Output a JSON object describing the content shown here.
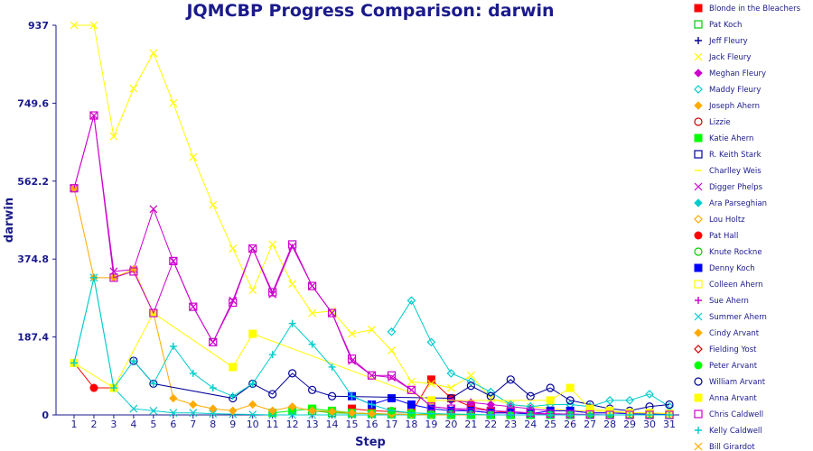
{
  "chart_data": {
    "type": "line",
    "title": "JQMCBP Progress Comparison: darwin",
    "xlabel": "Step",
    "ylabel": "darwin",
    "ylim": [
      0,
      937
    ],
    "yticks": [
      "0",
      "187.4",
      "374.8",
      "562.2",
      "749.6",
      "937"
    ],
    "x": [
      1,
      2,
      3,
      4,
      5,
      6,
      7,
      8,
      9,
      10,
      11,
      12,
      13,
      14,
      15,
      16,
      17,
      18,
      19,
      20,
      21,
      22,
      23,
      24,
      25,
      26,
      27,
      28,
      29,
      30,
      31
    ],
    "grid": false,
    "legend_position": "right",
    "series": [
      {
        "name": "Blonde in the Bleachers",
        "color": "#ff0000",
        "marker": "square",
        "values": [
          null,
          null,
          null,
          null,
          null,
          null,
          null,
          null,
          null,
          null,
          null,
          null,
          null,
          null,
          15,
          10,
          8,
          5,
          85,
          40,
          20,
          10,
          5,
          3,
          2,
          1,
          0,
          0,
          0,
          0,
          0
        ]
      },
      {
        "name": "Pat Koch",
        "color": "#00cc00",
        "marker": "square-open",
        "values": [
          null,
          null,
          null,
          null,
          null,
          null,
          null,
          null,
          null,
          null,
          null,
          null,
          10,
          5,
          4,
          3,
          2,
          1,
          1,
          0,
          0,
          0,
          0,
          0,
          0,
          0,
          0,
          0,
          0,
          0,
          0
        ]
      },
      {
        "name": "Jeff Fleury",
        "color": "#000099",
        "marker": "plus",
        "values": [
          null,
          null,
          null,
          null,
          null,
          null,
          null,
          null,
          null,
          null,
          null,
          null,
          null,
          null,
          null,
          null,
          null,
          null,
          null,
          null,
          null,
          null,
          null,
          null,
          null,
          null,
          null,
          null,
          null,
          null,
          null
        ]
      },
      {
        "name": "Jack Fleury",
        "color": "#ffff00",
        "marker": "x",
        "values": [
          937,
          937,
          670,
          785,
          870,
          750,
          620,
          505,
          400,
          300,
          410,
          315,
          245,
          250,
          195,
          205,
          155,
          80,
          75,
          65,
          95,
          40,
          25,
          20,
          15,
          10,
          10,
          8,
          5,
          5,
          3
        ]
      },
      {
        "name": "Meghan Fleury",
        "color": "#cc00cc",
        "marker": "diamond",
        "values": [
          null,
          null,
          null,
          null,
          null,
          null,
          null,
          null,
          null,
          null,
          null,
          null,
          null,
          null,
          null,
          null,
          null,
          null,
          null,
          35,
          30,
          25,
          20,
          15,
          10,
          10,
          5,
          5,
          3,
          2,
          1
        ]
      },
      {
        "name": "Maddy Fleury",
        "color": "#00cccc",
        "marker": "diamond-open",
        "values": [
          null,
          null,
          null,
          null,
          null,
          null,
          null,
          null,
          null,
          null,
          null,
          null,
          null,
          null,
          null,
          null,
          200,
          275,
          175,
          100,
          80,
          55,
          25,
          20,
          25,
          25,
          20,
          35,
          35,
          50,
          20
        ]
      },
      {
        "name": "Joseph Ahern",
        "color": "#ffaa00",
        "marker": "diamond",
        "values": [
          null,
          null,
          null,
          null,
          null,
          null,
          null,
          null,
          null,
          null,
          null,
          null,
          null,
          null,
          null,
          null,
          null,
          null,
          null,
          null,
          null,
          null,
          null,
          null,
          null,
          null,
          null,
          null,
          null,
          null,
          null
        ]
      },
      {
        "name": "Lizzie",
        "color": "#cc0000",
        "marker": "circle-open",
        "values": [
          null,
          null,
          null,
          null,
          null,
          null,
          null,
          null,
          null,
          null,
          null,
          null,
          null,
          null,
          null,
          null,
          null,
          null,
          null,
          null,
          null,
          null,
          null,
          null,
          null,
          null,
          null,
          null,
          null,
          null,
          null
        ]
      },
      {
        "name": "Katie Ahern",
        "color": "#00ff00",
        "marker": "square",
        "values": [
          null,
          null,
          null,
          null,
          null,
          null,
          null,
          null,
          null,
          null,
          5,
          10,
          15,
          10,
          5,
          3,
          2,
          1,
          0,
          0,
          0,
          0,
          0,
          0,
          0,
          0,
          0,
          0,
          0,
          0,
          0
        ]
      },
      {
        "name": "R. Keith Stark",
        "color": "#000099",
        "marker": "square-open",
        "values": [
          null,
          null,
          null,
          null,
          null,
          null,
          null,
          null,
          null,
          null,
          null,
          null,
          null,
          null,
          null,
          null,
          null,
          null,
          null,
          null,
          null,
          null,
          null,
          null,
          null,
          null,
          null,
          null,
          null,
          null,
          null
        ]
      },
      {
        "name": "Charlley Weis",
        "color": "#ffff00",
        "marker": "line",
        "values": [
          null,
          null,
          null,
          null,
          null,
          null,
          null,
          null,
          null,
          null,
          null,
          null,
          null,
          null,
          null,
          null,
          null,
          null,
          null,
          null,
          null,
          null,
          null,
          null,
          null,
          null,
          null,
          null,
          null,
          null,
          null
        ]
      },
      {
        "name": "Digger Phelps",
        "color": "#cc00cc",
        "marker": "x",
        "values": [
          545,
          720,
          345,
          350,
          495,
          370,
          260,
          175,
          275,
          400,
          290,
          405,
          310,
          245,
          130,
          95,
          90,
          60,
          20,
          15,
          10,
          5,
          5,
          3,
          2,
          1,
          0,
          0,
          0,
          0,
          0
        ]
      },
      {
        "name": "Ara Parseghian",
        "color": "#00cccc",
        "marker": "diamond",
        "values": [
          null,
          null,
          null,
          null,
          null,
          null,
          null,
          null,
          null,
          null,
          null,
          null,
          null,
          null,
          null,
          null,
          null,
          null,
          null,
          null,
          null,
          null,
          null,
          null,
          null,
          null,
          null,
          null,
          null,
          null,
          null
        ]
      },
      {
        "name": "Lou Holtz",
        "color": "#ffaa00",
        "marker": "diamond-open",
        "values": [
          null,
          null,
          null,
          null,
          null,
          null,
          null,
          null,
          null,
          null,
          null,
          null,
          null,
          null,
          null,
          null,
          null,
          null,
          null,
          null,
          null,
          null,
          null,
          null,
          null,
          null,
          null,
          null,
          null,
          null,
          null
        ]
      },
      {
        "name": "Pat Hall",
        "color": "#ff0000",
        "marker": "circle",
        "values": [
          125,
          65,
          65,
          null,
          null,
          null,
          null,
          null,
          null,
          null,
          null,
          null,
          null,
          null,
          null,
          null,
          null,
          null,
          null,
          null,
          null,
          null,
          null,
          null,
          null,
          null,
          null,
          null,
          null,
          null,
          null
        ]
      },
      {
        "name": "Knute Rockne",
        "color": "#00cc00",
        "marker": "circle-open",
        "values": [
          null,
          null,
          null,
          null,
          null,
          null,
          null,
          null,
          null,
          null,
          null,
          null,
          null,
          null,
          null,
          null,
          null,
          null,
          null,
          null,
          null,
          null,
          null,
          null,
          null,
          null,
          null,
          null,
          null,
          null,
          null
        ]
      },
      {
        "name": "Denny Koch",
        "color": "#0000ff",
        "marker": "square",
        "values": [
          null,
          null,
          null,
          null,
          null,
          null,
          null,
          null,
          null,
          null,
          null,
          null,
          null,
          null,
          45,
          25,
          40,
          25,
          15,
          10,
          10,
          5,
          5,
          3,
          10,
          10,
          5,
          5,
          3,
          2,
          1
        ]
      },
      {
        "name": "Colleen Ahern",
        "color": "#ffff00",
        "marker": "square-open",
        "values": [
          null,
          null,
          null,
          null,
          null,
          null,
          null,
          null,
          null,
          null,
          null,
          null,
          null,
          null,
          null,
          null,
          null,
          null,
          null,
          null,
          null,
          null,
          null,
          null,
          null,
          null,
          null,
          null,
          null,
          null,
          null
        ]
      },
      {
        "name": "Sue Ahern",
        "color": "#cc00cc",
        "marker": "plus",
        "values": [
          null,
          null,
          null,
          null,
          null,
          null,
          null,
          null,
          null,
          null,
          null,
          null,
          null,
          null,
          null,
          null,
          null,
          null,
          null,
          null,
          null,
          null,
          null,
          null,
          null,
          null,
          null,
          null,
          null,
          null,
          null
        ]
      },
      {
        "name": "Summer Ahern",
        "color": "#00cccc",
        "marker": "x",
        "values": [
          125,
          330,
          65,
          15,
          10,
          5,
          5,
          3,
          2,
          1,
          0,
          0,
          0,
          0,
          0,
          0,
          0,
          0,
          0,
          0,
          0,
          0,
          0,
          0,
          0,
          0,
          0,
          0,
          0,
          0,
          0
        ]
      },
      {
        "name": "Cindy Arvant",
        "color": "#ffaa00",
        "marker": "diamond",
        "values": [
          545,
          330,
          330,
          350,
          245,
          40,
          25,
          15,
          10,
          25,
          10,
          20,
          10,
          8,
          5,
          3,
          2,
          1,
          0,
          0,
          0,
          0,
          0,
          0,
          0,
          0,
          0,
          0,
          0,
          0,
          0
        ]
      },
      {
        "name": "Fielding Yost",
        "color": "#cc0000",
        "marker": "diamond-open",
        "values": [
          null,
          null,
          null,
          null,
          null,
          null,
          null,
          null,
          null,
          null,
          null,
          null,
          null,
          null,
          null,
          null,
          null,
          null,
          null,
          null,
          null,
          null,
          null,
          null,
          null,
          null,
          null,
          null,
          null,
          null,
          null
        ]
      },
      {
        "name": "Peter Arvant",
        "color": "#00ff00",
        "marker": "circle",
        "values": [
          null,
          null,
          null,
          null,
          null,
          null,
          null,
          null,
          null,
          null,
          null,
          null,
          null,
          null,
          null,
          null,
          10,
          5,
          3,
          2,
          1,
          0,
          0,
          0,
          0,
          0,
          0,
          0,
          0,
          0,
          0
        ]
      },
      {
        "name": "William Arvant",
        "color": "#000099",
        "marker": "circle-open",
        "values": [
          null,
          null,
          null,
          130,
          75,
          null,
          null,
          null,
          40,
          75,
          50,
          100,
          60,
          45,
          null,
          null,
          null,
          null,
          null,
          40,
          70,
          45,
          85,
          45,
          65,
          35,
          25,
          15,
          10,
          20,
          25
        ]
      },
      {
        "name": "Anna Arvant",
        "color": "#ffff00",
        "marker": "square",
        "values": [
          125,
          null,
          65,
          null,
          245,
          null,
          null,
          null,
          115,
          195,
          null,
          null,
          null,
          null,
          null,
          null,
          null,
          null,
          35,
          null,
          null,
          null,
          null,
          null,
          35,
          65,
          15,
          10,
          5,
          5,
          3
        ]
      },
      {
        "name": "Chris Caldwell",
        "color": "#cc00cc",
        "marker": "square-open",
        "values": [
          545,
          720,
          330,
          345,
          245,
          370,
          260,
          175,
          270,
          400,
          295,
          410,
          310,
          245,
          135,
          95,
          95,
          60,
          20,
          15,
          15,
          10,
          8,
          5,
          3,
          2,
          1,
          0,
          0,
          0,
          0
        ]
      },
      {
        "name": "Kelly Caldwell",
        "color": "#00cccc",
        "marker": "plus",
        "values": [
          125,
          330,
          65,
          130,
          75,
          165,
          100,
          65,
          45,
          75,
          145,
          220,
          170,
          115,
          45,
          25,
          10,
          5,
          3,
          2,
          1,
          0,
          0,
          0,
          0,
          0,
          0,
          0,
          0,
          0,
          0
        ]
      },
      {
        "name": "Bill Girardot",
        "color": "#ffaa00",
        "marker": "x",
        "values": [
          null,
          null,
          null,
          null,
          null,
          null,
          null,
          null,
          null,
          null,
          null,
          null,
          null,
          null,
          null,
          null,
          null,
          null,
          null,
          null,
          null,
          null,
          null,
          null,
          null,
          null,
          null,
          null,
          null,
          null,
          null
        ]
      }
    ]
  }
}
